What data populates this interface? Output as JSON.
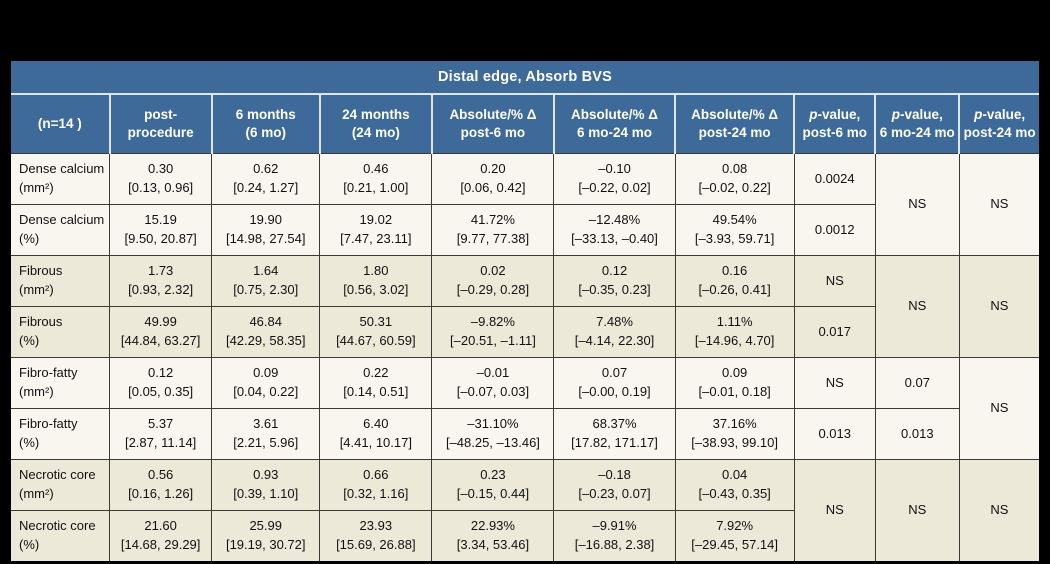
{
  "table": {
    "title": "Distal edge, Absorb BVS",
    "columns": [
      {
        "label": "(n=14 )"
      },
      {
        "label": "post-\nprocedure"
      },
      {
        "label": "6 months\n(6 mo)"
      },
      {
        "label": "24 months\n(24 mo)"
      },
      {
        "label": "Absolute/% Δ\npost-6 mo"
      },
      {
        "label": "Absolute/% Δ\n6 mo-24 mo"
      },
      {
        "label": "Absolute/% Δ\npost-24 mo"
      }
    ],
    "p_columns": [
      {
        "italic": "p",
        "rest": "-value,",
        "line2": "post-6 mo"
      },
      {
        "italic": "p",
        "rest": "-value,",
        "line2": "6 mo-24 mo"
      },
      {
        "italic": "p",
        "rest": "-value,",
        "line2": "post-24 mo"
      }
    ],
    "rows": [
      {
        "label": "Dense calcium\n(mm²)",
        "cells": [
          "0.30\n[0.13, 0.96]",
          "0.62\n[0.24, 1.27]",
          "0.46\n[0.21, 1.00]",
          "0.20\n[0.06, 0.42]",
          "–0.10\n[–0.22, 0.02]",
          "0.08\n[–0.02, 0.22]"
        ],
        "pcells": [
          {
            "text": "0.0024",
            "rowspan": 1
          },
          {
            "text": "NS",
            "rowspan": 2
          },
          {
            "text": "NS",
            "rowspan": 2
          }
        ]
      },
      {
        "label": "Dense calcium\n(%)",
        "cells": [
          "15.19\n[9.50, 20.87]",
          "19.90\n[14.98, 27.54]",
          "19.02\n[7.47, 23.11]",
          "41.72%\n[9.77, 77.38]",
          "–12.48%\n[–33.13, –0.40]",
          "49.54%\n[–3.93, 59.71]"
        ],
        "pcells": [
          {
            "text": "0.0012",
            "rowspan": 1
          }
        ]
      },
      {
        "label": "Fibrous\n(mm²)",
        "cells": [
          "1.73\n[0.93, 2.32]",
          "1.64\n[0.75, 2.30]",
          "1.80\n[0.56, 3.02]",
          "0.02\n[–0.29, 0.28]",
          "0.12\n[–0.35, 0.23]",
          "0.16\n[–0.26, 0.41]"
        ],
        "pcells": [
          {
            "text": "NS",
            "rowspan": 1
          },
          {
            "text": "NS",
            "rowspan": 2
          },
          {
            "text": "NS",
            "rowspan": 2
          }
        ]
      },
      {
        "label": "Fibrous\n(%)",
        "cells": [
          "49.99\n[44.84, 63.27]",
          "46.84\n[42.29, 58.35]",
          "50.31\n[44.67, 60.59]",
          "–9.82%\n[–20.51, –1.11]",
          "7.48%\n[–4.14, 22.30]",
          "1.11%\n[–14.96, 4.70]"
        ],
        "pcells": [
          {
            "text": "0.017",
            "rowspan": 1
          }
        ]
      },
      {
        "label": "Fibro-fatty\n(mm²)",
        "cells": [
          "0.12\n[0.05, 0.35]",
          "0.09\n[0.04, 0.22]",
          "0.22\n[0.14, 0.51]",
          "–0.01\n[–0.07, 0.03]",
          "0.07\n[–0.00, 0.19]",
          "0.09\n[–0.01, 0.18]"
        ],
        "pcells": [
          {
            "text": "NS",
            "rowspan": 1
          },
          {
            "text": "0.07",
            "rowspan": 1
          },
          {
            "text": "NS",
            "rowspan": 2
          }
        ]
      },
      {
        "label": "Fibro-fatty\n(%)",
        "cells": [
          "5.37\n[2.87, 11.14]",
          "3.61\n[2.21, 5.96]",
          "6.40\n[4.41, 10.17]",
          "–31.10%\n[–48.25, –13.46]",
          "68.37%\n[17.82, 171.17]",
          "37.16%\n[–38.93, 99.10]"
        ],
        "pcells": [
          {
            "text": "0.013",
            "rowspan": 1
          },
          {
            "text": "0.013",
            "rowspan": 1
          }
        ]
      },
      {
        "label": "Necrotic core\n(mm²)",
        "cells": [
          "0.56\n[0.16, 1.26]",
          "0.93\n[0.39, 1.10]",
          "0.66\n[0.32, 1.16]",
          "0.23\n[–0.15, 0.44]",
          "–0.18\n[–0.23, 0.07]",
          "0.04\n[–0.43, 0.35]"
        ],
        "pcells": [
          {
            "text": "NS",
            "rowspan": 2
          },
          {
            "text": "NS",
            "rowspan": 2
          },
          {
            "text": "NS",
            "rowspan": 2
          }
        ]
      },
      {
        "label": "Necrotic core\n(%)",
        "cells": [
          "21.60\n[14.68, 29.29]",
          "25.99\n[19.19, 30.72]",
          "23.93\n[15.69, 26.88]",
          "22.93%\n[3.34, 53.46]",
          "–9.91%\n[–16.88, 2.38]",
          "7.92%\n[–29.45, 57.14]"
        ],
        "pcells": []
      }
    ],
    "colors": {
      "header_blue": "#3d6a99",
      "row_light": "#f8f6ef",
      "row_dark": "#ece9d8",
      "grid_line": "#3b3b34",
      "header_separator": "#dfe5ec"
    }
  }
}
